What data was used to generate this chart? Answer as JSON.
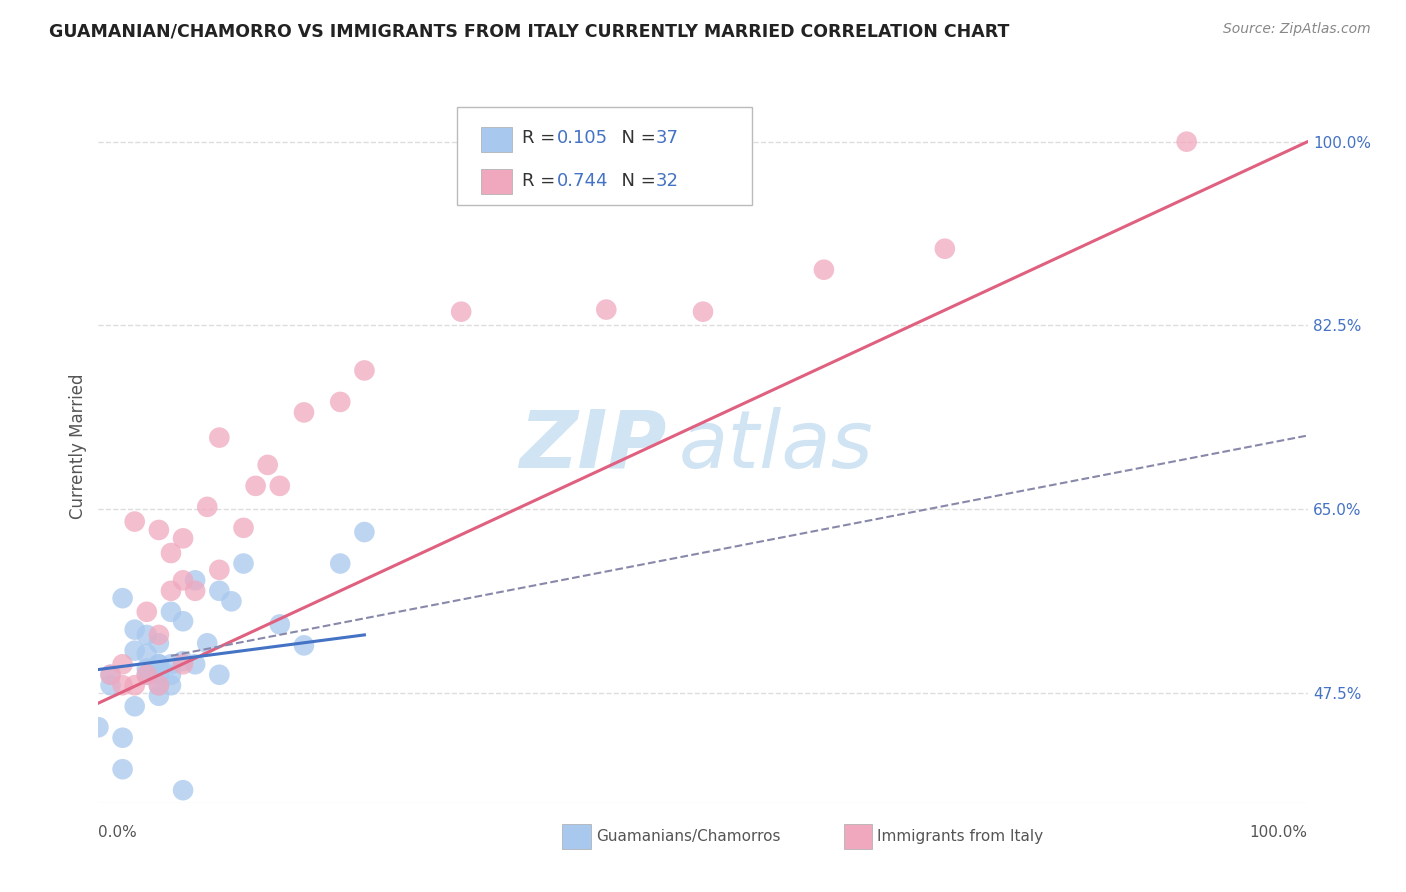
{
  "title": "GUAMANIAN/CHAMORRO VS IMMIGRANTS FROM ITALY CURRENTLY MARRIED CORRELATION CHART",
  "source": "Source: ZipAtlas.com",
  "ylabel": "Currently Married",
  "ytick_labels": [
    "47.5%",
    "65.0%",
    "82.5%",
    "100.0%"
  ],
  "ytick_vals": [
    0.475,
    0.65,
    0.825,
    1.0
  ],
  "xtick_labels": [
    "0.0%",
    "100.0%"
  ],
  "xtick_vals": [
    0.0,
    1.0
  ],
  "xlim": [
    0.0,
    1.0
  ],
  "ylim": [
    0.37,
    1.05
  ],
  "legend_blue_r": "0.105",
  "legend_blue_n": "37",
  "legend_pink_r": "0.744",
  "legend_pink_n": "32",
  "blue_color": "#a8c8ee",
  "pink_color": "#f0a8be",
  "blue_line_color": "#4472c4",
  "pink_line_color": "#e06080",
  "dash_line_color": "#8888aa",
  "watermark_zip": "ZIP",
  "watermark_atlas": "atlas",
  "watermark_color": "#d0e4f4",
  "blue_scatter_x": [
    0.02,
    0.03,
    0.03,
    0.04,
    0.04,
    0.04,
    0.04,
    0.05,
    0.05,
    0.05,
    0.05,
    0.05,
    0.05,
    0.06,
    0.06,
    0.06,
    0.06,
    0.07,
    0.07,
    0.08,
    0.08,
    0.09,
    0.1,
    0.1,
    0.11,
    0.12,
    0.15,
    0.17,
    0.2,
    0.22,
    0.01,
    0.01,
    0.02,
    0.02,
    0.03,
    0.07,
    0.0
  ],
  "blue_scatter_y": [
    0.565,
    0.515,
    0.535,
    0.492,
    0.498,
    0.512,
    0.53,
    0.472,
    0.482,
    0.492,
    0.502,
    0.502,
    0.522,
    0.482,
    0.492,
    0.502,
    0.552,
    0.505,
    0.543,
    0.502,
    0.582,
    0.522,
    0.492,
    0.572,
    0.562,
    0.598,
    0.54,
    0.52,
    0.598,
    0.628,
    0.482,
    0.492,
    0.402,
    0.432,
    0.462,
    0.382,
    0.442
  ],
  "pink_scatter_x": [
    0.01,
    0.02,
    0.02,
    0.03,
    0.03,
    0.04,
    0.04,
    0.05,
    0.05,
    0.05,
    0.06,
    0.06,
    0.07,
    0.07,
    0.07,
    0.08,
    0.09,
    0.1,
    0.1,
    0.12,
    0.13,
    0.14,
    0.15,
    0.17,
    0.2,
    0.22,
    0.3,
    0.42,
    0.5,
    0.6,
    0.7,
    0.9
  ],
  "pink_scatter_y": [
    0.492,
    0.482,
    0.502,
    0.482,
    0.638,
    0.492,
    0.552,
    0.482,
    0.53,
    0.63,
    0.572,
    0.608,
    0.502,
    0.582,
    0.622,
    0.572,
    0.652,
    0.592,
    0.718,
    0.632,
    0.672,
    0.692,
    0.672,
    0.742,
    0.752,
    0.782,
    0.838,
    0.84,
    0.838,
    0.878,
    0.898,
    1.0
  ],
  "blue_trend_x": [
    0.0,
    0.22
  ],
  "blue_trend_y": [
    0.497,
    0.53
  ],
  "pink_trend_x": [
    0.0,
    1.0
  ],
  "pink_trend_y": [
    0.465,
    1.0
  ],
  "dash_trend_x": [
    0.06,
    1.0
  ],
  "dash_trend_y": [
    0.51,
    0.72
  ],
  "grid_color": "#dddddd",
  "background_color": "#ffffff"
}
